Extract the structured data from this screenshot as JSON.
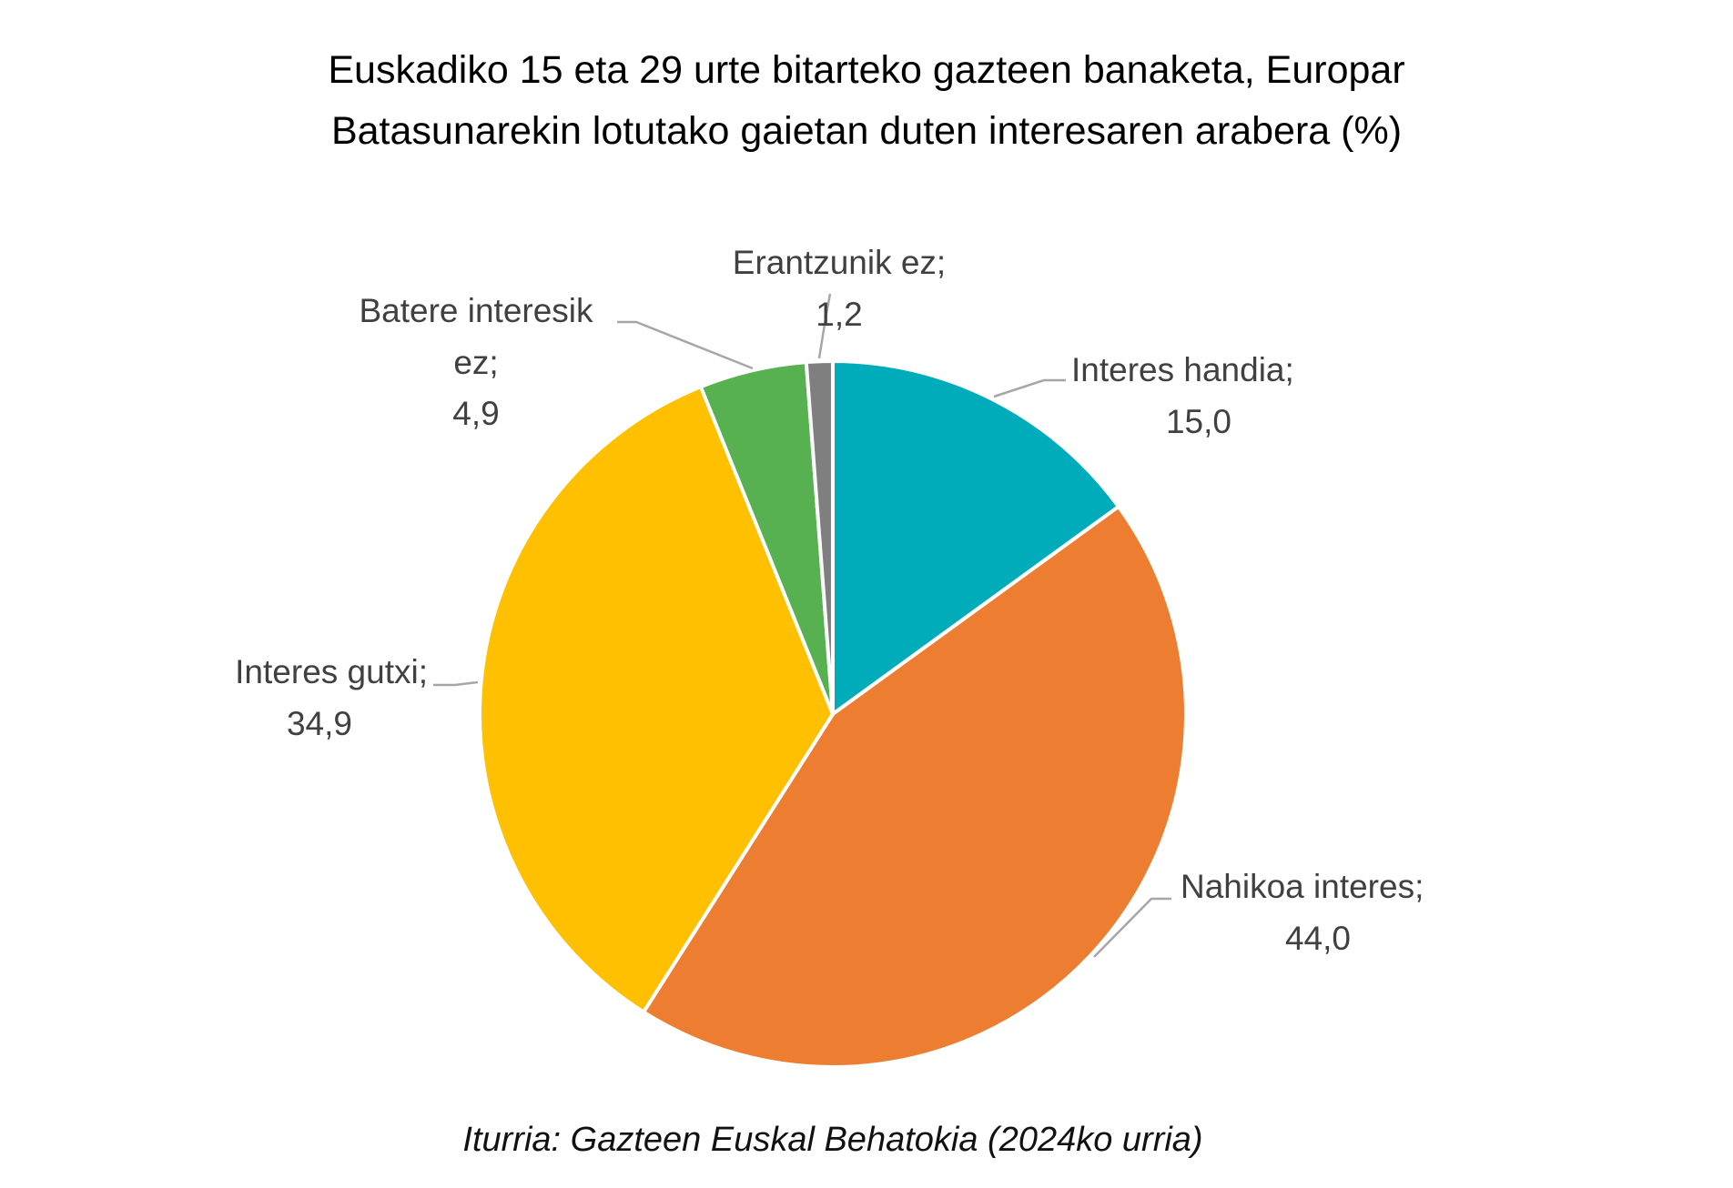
{
  "chart_data": {
    "type": "pie",
    "title": "Euskadiko 15 eta 29 urte bitarteko gazteen banaketa, Europar Batasunarekin lotutako gaietan duten interesaren arabera (%)",
    "title_lines": [
      "Euskadiko 15 eta 29 urte bitarteko gazteen banaketa, Europar",
      "Batasunarekin lotutako gaietan duten interesaren arabera (%)"
    ],
    "source": "Iturria: Gazteen Euskal Behatokia (2024ko urria)",
    "start": "top, clockwise",
    "slices": [
      {
        "label": "Interes handia;",
        "value": 15.0,
        "value_label": "15,0",
        "color": "#00ACBA"
      },
      {
        "label": "Nahikoa interes;",
        "value": 44.0,
        "value_label": "44,0",
        "color": "#ED7D31"
      },
      {
        "label": "Interes gutxi;",
        "value": 34.9,
        "value_label": "34,9",
        "color": "#FEC000"
      },
      {
        "label": "Batere interesik ez;",
        "value": 4.9,
        "value_label": "4,9",
        "color": "#58B150"
      },
      {
        "label": "Erantzunik ez;",
        "value": 1.2,
        "value_label": "1,2",
        "color": "#7F7F7F"
      }
    ]
  }
}
